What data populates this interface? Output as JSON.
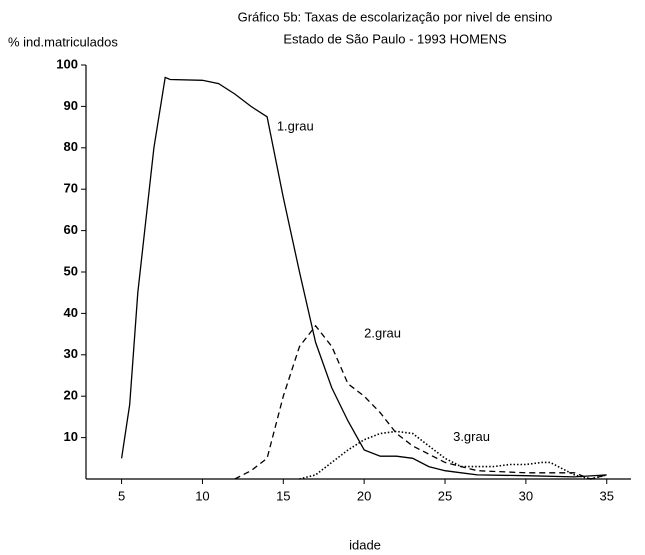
{
  "chart_data": {
    "type": "line",
    "title": "Gráfico 5b: Taxas de escolarização por nivel de ensino",
    "subtitle": "Estado de São Paulo - 1993  HOMENS",
    "y_label": "% ind.matriculados",
    "x_label": "idade",
    "xlim": [
      2.8,
      36.5
    ],
    "ylim": [
      0,
      100
    ],
    "xticks": [
      5,
      10,
      15,
      20,
      25,
      30,
      35
    ],
    "yticks": [
      10,
      20,
      30,
      40,
      50,
      60,
      70,
      80,
      90,
      100
    ],
    "grid": false,
    "series": [
      {
        "name": "1.grau",
        "color": "#000000",
        "style": "solid",
        "x": [
          5,
          5.5,
          6,
          7,
          7.7,
          8,
          10,
          11,
          12,
          13,
          14,
          15,
          16,
          17,
          18,
          19,
          20,
          21,
          22,
          23,
          24,
          25,
          26,
          27,
          30,
          33,
          35
        ],
        "values": [
          5,
          18,
          45,
          80,
          97,
          96.5,
          96.3,
          95.5,
          93,
          90,
          87.5,
          68,
          50,
          33,
          22,
          14,
          7,
          5.5,
          5.5,
          5,
          3,
          2,
          1.5,
          1,
          0.8,
          0.5,
          1
        ]
      },
      {
        "name": "2.grau",
        "color": "#000000",
        "style": "dashed",
        "x": [
          12,
          13,
          14,
          15,
          16,
          17,
          18,
          19,
          20,
          21,
          22,
          23,
          24,
          25,
          26,
          27,
          30,
          33,
          34,
          35
        ],
        "values": [
          0,
          2,
          5,
          20,
          32,
          37,
          32,
          23,
          20,
          16,
          11,
          8,
          6,
          4,
          3,
          2,
          1.5,
          1.5,
          0,
          1
        ]
      },
      {
        "name": "3.grau",
        "color": "#000000",
        "style": "dotted",
        "x": [
          16,
          17,
          18,
          19,
          20,
          21,
          22,
          23,
          24,
          25,
          26,
          27,
          28,
          29,
          30,
          31,
          31.5,
          32,
          33,
          34,
          35
        ],
        "values": [
          0,
          1,
          4,
          7,
          9.5,
          11,
          11.5,
          11,
          8,
          5,
          3,
          3,
          3,
          3.5,
          3.5,
          4,
          4,
          3,
          1,
          0,
          1
        ]
      }
    ]
  }
}
